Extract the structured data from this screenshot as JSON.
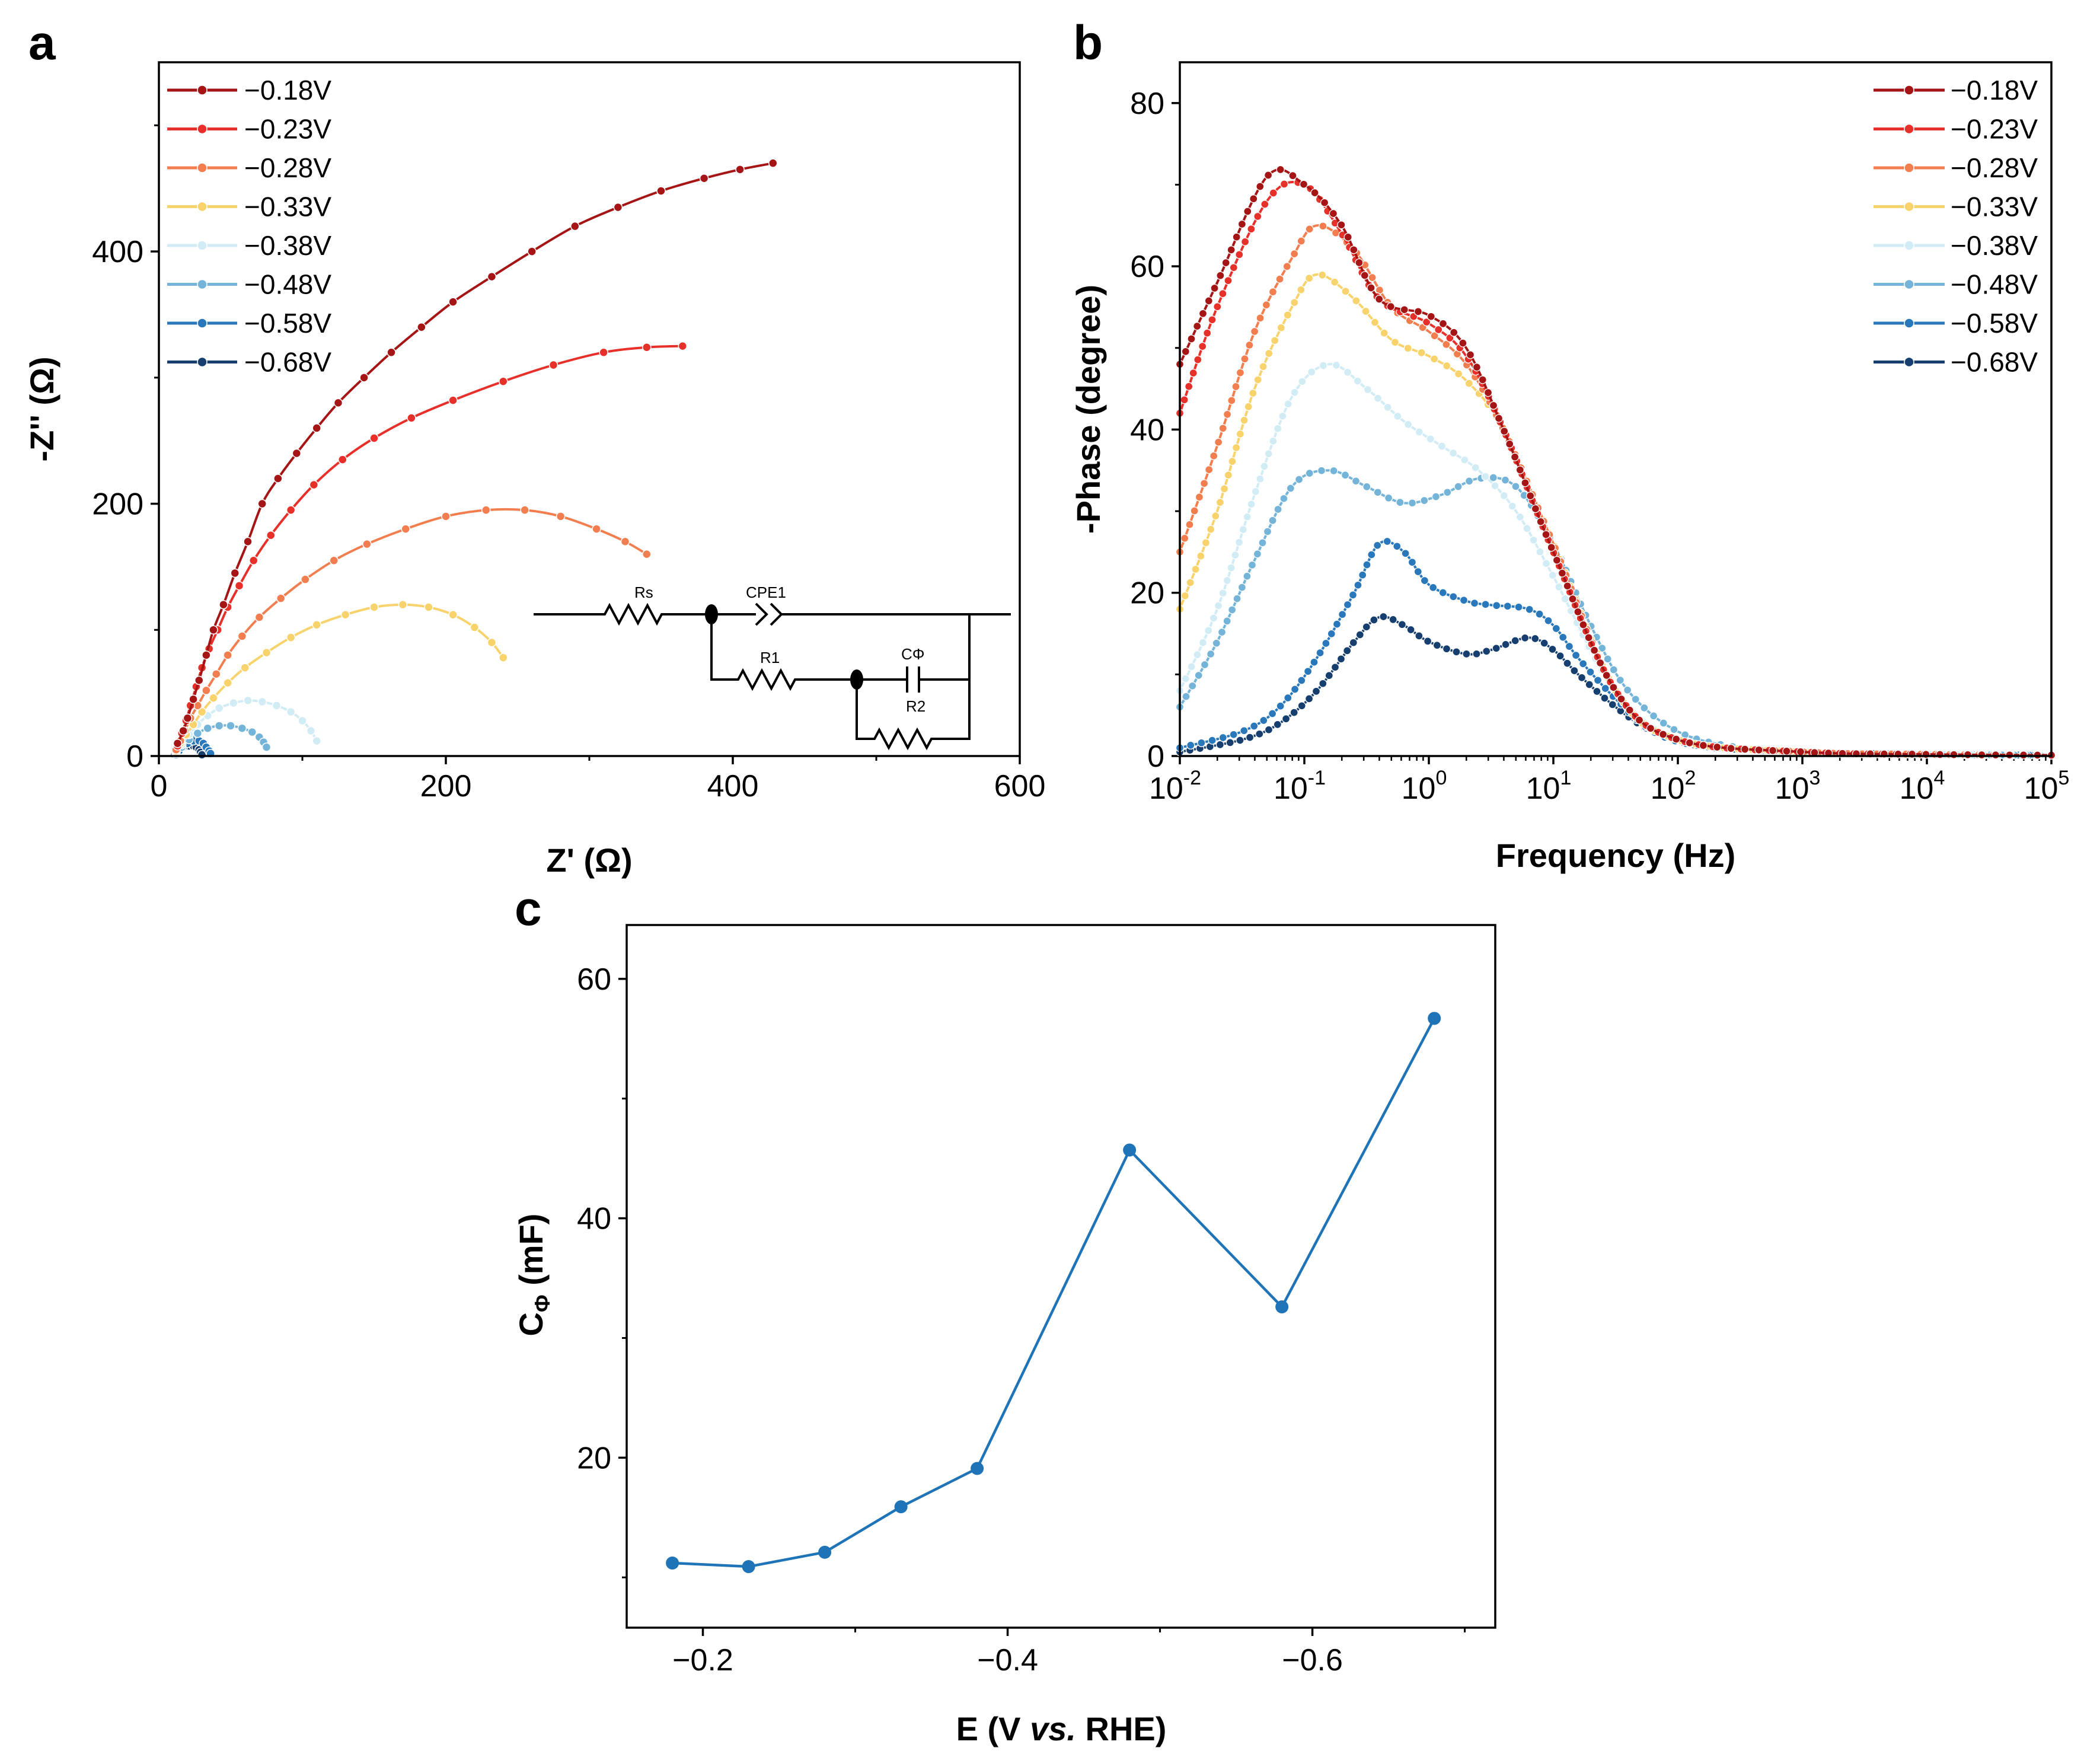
{
  "colors": {
    "v018": "#a51515",
    "v023": "#e8302a",
    "v028": "#f27e4f",
    "v033": "#f8d26a",
    "v038": "#d2ecf5",
    "v048": "#74b4d8",
    "v058": "#2a78bc",
    "v068": "#163e6e",
    "panel_c": "#1f73b7"
  },
  "chart_data": [
    {
      "panel": "a",
      "type": "scatter",
      "xlabel": "Z' (Ω)",
      "ylabel": "-Z'' (Ω)",
      "xlim": [
        0,
        600
      ],
      "ylim": [
        0,
        550
      ],
      "xticks": [
        "0",
        "200",
        "400",
        "600"
      ],
      "yticks": [
        "0",
        "200",
        "400"
      ],
      "legend_position": "top-left",
      "circuit": {
        "labels": [
          "Rs",
          "CPE1",
          "R1",
          "CΦ",
          "R2"
        ]
      },
      "series": [
        {
          "name": "−0.18V",
          "color_key": "v018",
          "x": [
            13,
            17,
            20,
            24,
            28,
            33,
            38,
            45,
            53,
            62,
            72,
            83,
            96,
            110,
            125,
            143,
            162,
            183,
            205,
            232,
            260,
            290,
            320,
            350,
            380,
            405,
            428
          ],
          "y": [
            10,
            20,
            30,
            45,
            60,
            80,
            100,
            120,
            145,
            170,
            200,
            220,
            240,
            260,
            280,
            300,
            320,
            340,
            360,
            380,
            400,
            420,
            435,
            448,
            458,
            465,
            470
          ]
        },
        {
          "name": "−0.23V",
          "color_key": "v023",
          "x": [
            13,
            16,
            19,
            22,
            26,
            30,
            35,
            41,
            48,
            56,
            66,
            78,
            92,
            108,
            128,
            150,
            176,
            205,
            240,
            275,
            310,
            340,
            365
          ],
          "y": [
            8,
            18,
            28,
            40,
            55,
            70,
            85,
            100,
            118,
            135,
            155,
            175,
            195,
            215,
            235,
            252,
            268,
            282,
            297,
            310,
            320,
            324,
            325
          ]
        },
        {
          "name": "−0.28V",
          "color_key": "v028",
          "x": [
            12,
            15,
            18,
            22,
            27,
            33,
            40,
            48,
            58,
            70,
            85,
            102,
            122,
            145,
            172,
            200,
            228,
            255,
            280,
            305,
            325,
            340
          ],
          "y": [
            5,
            12,
            20,
            30,
            40,
            52,
            65,
            80,
            95,
            110,
            125,
            140,
            155,
            168,
            180,
            190,
            195,
            195,
            190,
            180,
            170,
            160
          ]
        },
        {
          "name": "−0.33V",
          "color_key": "v033",
          "x": [
            12,
            15,
            19,
            24,
            30,
            38,
            48,
            60,
            75,
            92,
            110,
            130,
            150,
            170,
            188,
            205,
            220,
            232,
            240
          ],
          "y": [
            4,
            10,
            17,
            25,
            35,
            46,
            58,
            70,
            82,
            94,
            104,
            112,
            118,
            120,
            118,
            112,
            102,
            90,
            78
          ]
        },
        {
          "name": "−0.38V",
          "color_key": "v038",
          "x": [
            12,
            16,
            21,
            27,
            34,
            42,
            52,
            62,
            72,
            82,
            92,
            100,
            106,
            110
          ],
          "y": [
            3,
            9,
            17,
            25,
            32,
            38,
            42,
            44,
            43,
            40,
            35,
            28,
            20,
            12
          ]
        },
        {
          "name": "−0.48V",
          "color_key": "v048",
          "x": [
            12,
            16,
            21,
            27,
            34,
            42,
            50,
            58,
            65,
            70,
            73,
            75
          ],
          "y": [
            2,
            7,
            13,
            18,
            22,
            24,
            24,
            22,
            19,
            15,
            11,
            7
          ]
        },
        {
          "name": "−0.58V",
          "color_key": "v058",
          "x": [
            12,
            14,
            17,
            20,
            24,
            28,
            31,
            33,
            35,
            36
          ],
          "y": [
            1,
            4,
            7,
            10,
            12,
            12,
            10,
            7,
            4,
            2
          ]
        },
        {
          "name": "−0.68V",
          "color_key": "v068",
          "x": [
            11,
            13,
            15,
            18,
            21,
            24,
            26,
            28,
            29,
            30
          ],
          "y": [
            1,
            3,
            5,
            7,
            8,
            8,
            7,
            5,
            3,
            1
          ]
        }
      ]
    },
    {
      "panel": "b",
      "type": "line",
      "xlabel": "Frequency (Hz)",
      "ylabel": "-Phase (degree)",
      "xscale": "log",
      "xlim_log10": [
        -2,
        5
      ],
      "ylim": [
        0,
        85
      ],
      "xtick_exponents": [
        -2,
        -1,
        0,
        1,
        2,
        3,
        4,
        5
      ],
      "xtick_base": "10",
      "yticks": [
        "0",
        "20",
        "40",
        "60",
        "80"
      ],
      "legend_position": "top-right",
      "series": [
        {
          "name": "−0.18V",
          "color_key": "v018",
          "log10f": [
            -2,
            -1.7,
            -1.3,
            -1.0,
            -0.7,
            -0.4,
            0.0,
            0.3,
            0.6,
            1.0,
            1.5,
            2.0,
            3.0,
            4.0,
            5.0
          ],
          "phase": [
            48,
            58,
            71,
            70,
            65,
            56,
            54,
            50,
            40,
            25,
            8,
            2,
            0.5,
            0.2,
            0.1
          ]
        },
        {
          "name": "−0.23V",
          "color_key": "v023",
          "log10f": [
            -2,
            -1.7,
            -1.3,
            -1.0,
            -0.7,
            -0.4,
            0.0,
            0.3,
            0.6,
            1.0,
            1.5,
            2.0,
            3.0,
            4.0,
            5.0
          ],
          "phase": [
            42,
            55,
            68,
            70,
            64,
            56,
            53,
            49,
            40,
            25,
            8,
            2,
            0.5,
            0.2,
            0.1
          ]
        },
        {
          "name": "−0.28V",
          "color_key": "v028",
          "log10f": [
            -2,
            -1.7,
            -1.4,
            -1.1,
            -0.9,
            -0.6,
            -0.3,
            0.0,
            0.3,
            0.6,
            1.0,
            1.5,
            2.0,
            3.0,
            4.0,
            5.0
          ],
          "phase": [
            25,
            38,
            52,
            61,
            65,
            62,
            55,
            52,
            48,
            40,
            26,
            8,
            2,
            0.5,
            0.2,
            0.1
          ]
        },
        {
          "name": "−0.33V",
          "color_key": "v033",
          "log10f": [
            -2,
            -1.7,
            -1.4,
            -1.1,
            -0.9,
            -0.6,
            -0.3,
            0.0,
            0.3,
            0.6,
            1.0,
            1.5,
            2.0,
            3.0,
            4.0,
            5.0
          ],
          "phase": [
            18,
            30,
            45,
            55,
            59,
            56,
            51,
            49,
            46,
            40,
            26,
            8,
            2,
            0.5,
            0.2,
            0.1
          ]
        },
        {
          "name": "−0.38V",
          "color_key": "v038",
          "log10f": [
            -2,
            -1.7,
            -1.4,
            -1.1,
            -0.8,
            -0.5,
            -0.2,
            0.1,
            0.4,
            0.7,
            1.0,
            1.5,
            2.0,
            3.0,
            4.0,
            5.0
          ],
          "phase": [
            8,
            18,
            32,
            44,
            48,
            45,
            41,
            38,
            35,
            30,
            22,
            8,
            2,
            0.5,
            0.2,
            0.1
          ]
        },
        {
          "name": "−0.48V",
          "color_key": "v048",
          "log10f": [
            -2,
            -1.7,
            -1.4,
            -1.1,
            -0.8,
            -0.5,
            -0.2,
            0.1,
            0.4,
            0.7,
            1.0,
            1.3,
            1.6,
            2.0,
            2.5,
            3.0,
            4.0,
            5.0
          ],
          "phase": [
            6,
            14,
            24,
            33,
            35,
            33,
            31,
            32,
            34,
            33,
            26,
            16,
            8,
            3,
            1,
            0.5,
            0.2,
            0.1
          ]
        },
        {
          "name": "−0.58V",
          "color_key": "v058",
          "log10f": [
            -2,
            -1.5,
            -1.2,
            -0.9,
            -0.6,
            -0.4,
            -0.2,
            0.0,
            0.3,
            0.5,
            0.8,
            1.0,
            1.2,
            1.5,
            1.8,
            2.2,
            3.0,
            4.0,
            5.0
          ],
          "phase": [
            1,
            3,
            6,
            12,
            20,
            26,
            25,
            21,
            19,
            18.5,
            18,
            16,
            12,
            7,
            3,
            1.2,
            0.5,
            0.2,
            0.1
          ]
        },
        {
          "name": "−0.68V",
          "color_key": "v068",
          "log10f": [
            -2,
            -1.5,
            -1.2,
            -0.9,
            -0.6,
            -0.4,
            -0.2,
            0.0,
            0.3,
            0.5,
            0.8,
            1.0,
            1.2,
            1.5,
            1.8,
            2.2,
            3.0,
            4.0,
            5.0
          ],
          "phase": [
            0.5,
            2,
            4,
            8,
            14,
            17,
            16,
            14,
            12.5,
            13,
            14.5,
            13,
            10,
            6,
            3,
            1.2,
            0.5,
            0.2,
            0.1
          ]
        }
      ]
    },
    {
      "panel": "c",
      "type": "line",
      "xlabel_parts": [
        "E (V ",
        "vs.",
        " RHE)"
      ],
      "ylabel_main": "C",
      "ylabel_sub": "Φ",
      "ylabel_unit": " (mF)",
      "xlim": [
        -0.15,
        -0.72
      ],
      "ylim": [
        5.8,
        64.5
      ],
      "xticks": [
        -0.2,
        -0.4,
        -0.6
      ],
      "xtick_labels": [
        "−0.2",
        "−0.4",
        "−0.6"
      ],
      "yticks": [
        20,
        40,
        60
      ],
      "ytick_labels": [
        "20",
        "40",
        "60"
      ],
      "series": [
        {
          "name": "CΦ",
          "x": [
            -0.18,
            -0.23,
            -0.28,
            -0.33,
            -0.38,
            -0.48,
            -0.58,
            -0.68
          ],
          "y": [
            11.2,
            10.9,
            12.1,
            15.9,
            19.1,
            45.7,
            32.6,
            56.7
          ]
        }
      ]
    }
  ]
}
